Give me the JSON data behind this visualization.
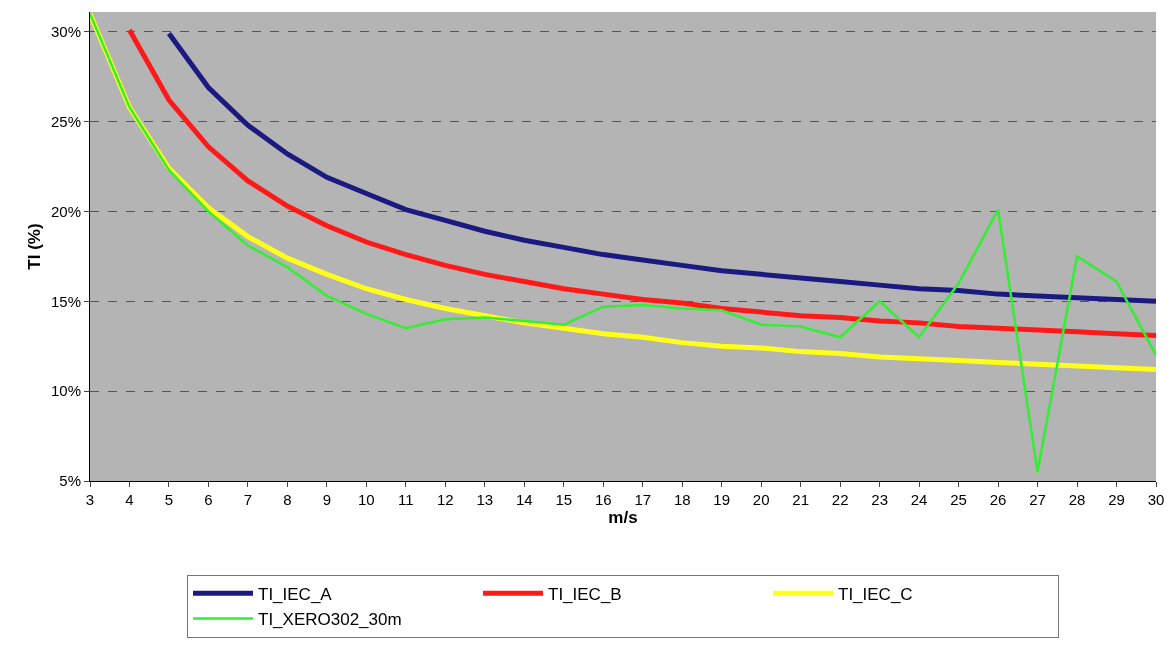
{
  "chart_data": {
    "type": "line",
    "xlabel": "m/s",
    "ylabel": "TI (%)",
    "x": [
      3,
      4,
      5,
      6,
      7,
      8,
      9,
      10,
      11,
      12,
      13,
      14,
      15,
      16,
      17,
      18,
      19,
      20,
      21,
      22,
      23,
      24,
      25,
      26,
      27,
      28,
      29,
      30
    ],
    "xlim": [
      3,
      30
    ],
    "xticks": [
      3,
      4,
      5,
      6,
      7,
      8,
      9,
      10,
      11,
      12,
      13,
      14,
      15,
      16,
      17,
      18,
      19,
      20,
      21,
      22,
      23,
      24,
      25,
      26,
      27,
      28,
      29,
      30
    ],
    "ylim": [
      5,
      31.1
    ],
    "yticks": [
      {
        "value": 5,
        "label": "5%"
      },
      {
        "value": 10,
        "label": "10%"
      },
      {
        "value": 15,
        "label": "15%"
      },
      {
        "value": 20,
        "label": "20%"
      },
      {
        "value": 25,
        "label": "25%"
      },
      {
        "value": 30,
        "label": "30%"
      }
    ],
    "grid": "y",
    "legend": "bottom",
    "line_style": "solid",
    "marker": "none",
    "series": [
      {
        "name": "TI_IEC_A",
        "color": "#1a1a80",
        "values": [
          null,
          null,
          29.9,
          26.9,
          24.8,
          23.2,
          21.9,
          21.0,
          20.1,
          19.5,
          18.9,
          18.4,
          18.0,
          17.6,
          17.3,
          17.0,
          16.7,
          16.5,
          16.3,
          16.1,
          15.9,
          15.7,
          15.6,
          15.4,
          15.3,
          15.2,
          15.1,
          15.0
        ]
      },
      {
        "name": "TI_IEC_B",
        "color": "#ff1a1a",
        "values": [
          null,
          30.1,
          26.2,
          23.6,
          21.7,
          20.3,
          19.2,
          18.3,
          17.6,
          17.0,
          16.5,
          16.1,
          15.7,
          15.4,
          15.1,
          14.9,
          14.6,
          14.4,
          14.2,
          14.1,
          13.9,
          13.8,
          13.6,
          13.5,
          13.4,
          13.3,
          13.2,
          13.1
        ]
      },
      {
        "name": "TI_IEC_C",
        "color": "#ffff1a",
        "values": [
          31.0,
          25.8,
          22.4,
          20.2,
          18.6,
          17.4,
          16.5,
          15.7,
          15.1,
          14.6,
          14.2,
          13.8,
          13.5,
          13.2,
          13.0,
          12.7,
          12.5,
          12.4,
          12.2,
          12.1,
          11.9,
          11.8,
          11.7,
          11.6,
          11.5,
          11.4,
          11.3,
          11.2
        ]
      },
      {
        "name": "TI_XERO302_30m",
        "color": "#33ee33",
        "values": [
          31.0,
          25.8,
          22.3,
          20.0,
          18.1,
          16.9,
          15.3,
          14.3,
          13.5,
          14.0,
          14.1,
          13.9,
          13.7,
          14.7,
          14.8,
          14.6,
          14.5,
          13.7,
          13.6,
          13.0,
          15.0,
          13.0,
          16.0,
          20.1,
          5.5,
          17.5,
          16.1,
          12.0
        ]
      }
    ]
  }
}
